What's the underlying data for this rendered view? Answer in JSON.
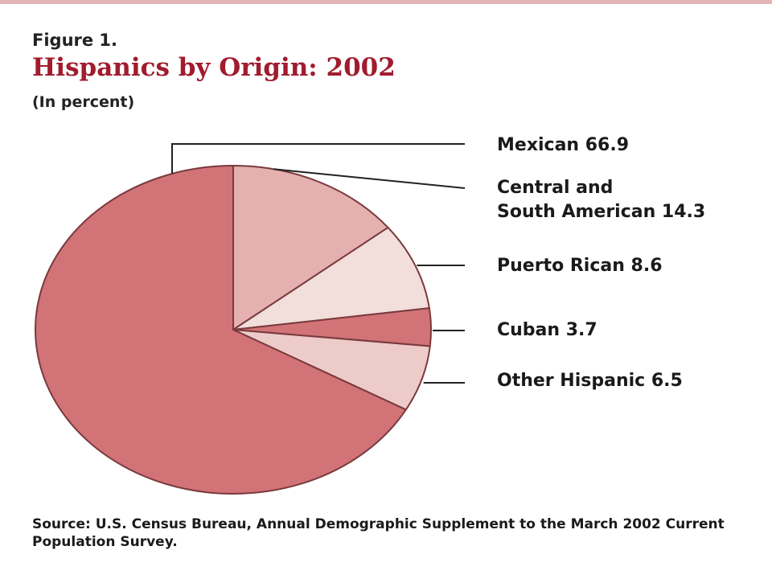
{
  "figure_label": "Figure 1.",
  "title": "Hispanics by Origin: 2002",
  "subtitle": "(In percent)",
  "source": "Source: U.S. Census Bureau, Annual Demographic Supplement to the March 2002 Current Population Survey.",
  "colors": {
    "title": "#a01c2e",
    "leader_line": "#222222",
    "slice_outline": "#7a3a3e"
  },
  "chart_data": {
    "type": "pie",
    "unit": "percent",
    "slices": [
      {
        "label": "Mexican",
        "value": 66.9,
        "color": "#d17377",
        "display": "Mexican  66.9"
      },
      {
        "label": "Central and South American",
        "value": 14.3,
        "color": "#e5b1b0",
        "display_line1": "Central and",
        "display_line2": "South American  14.3"
      },
      {
        "label": "Puerto Rican",
        "value": 8.6,
        "color": "#f2dedb",
        "display": "Puerto Rican  8.6"
      },
      {
        "label": "Cuban",
        "value": 3.7,
        "color": "#d17377",
        "display": "Cuban  3.7"
      },
      {
        "label": "Other Hispanic",
        "value": 6.5,
        "color": "#edcbc9",
        "display": "Other Hispanic  6.5"
      }
    ]
  }
}
